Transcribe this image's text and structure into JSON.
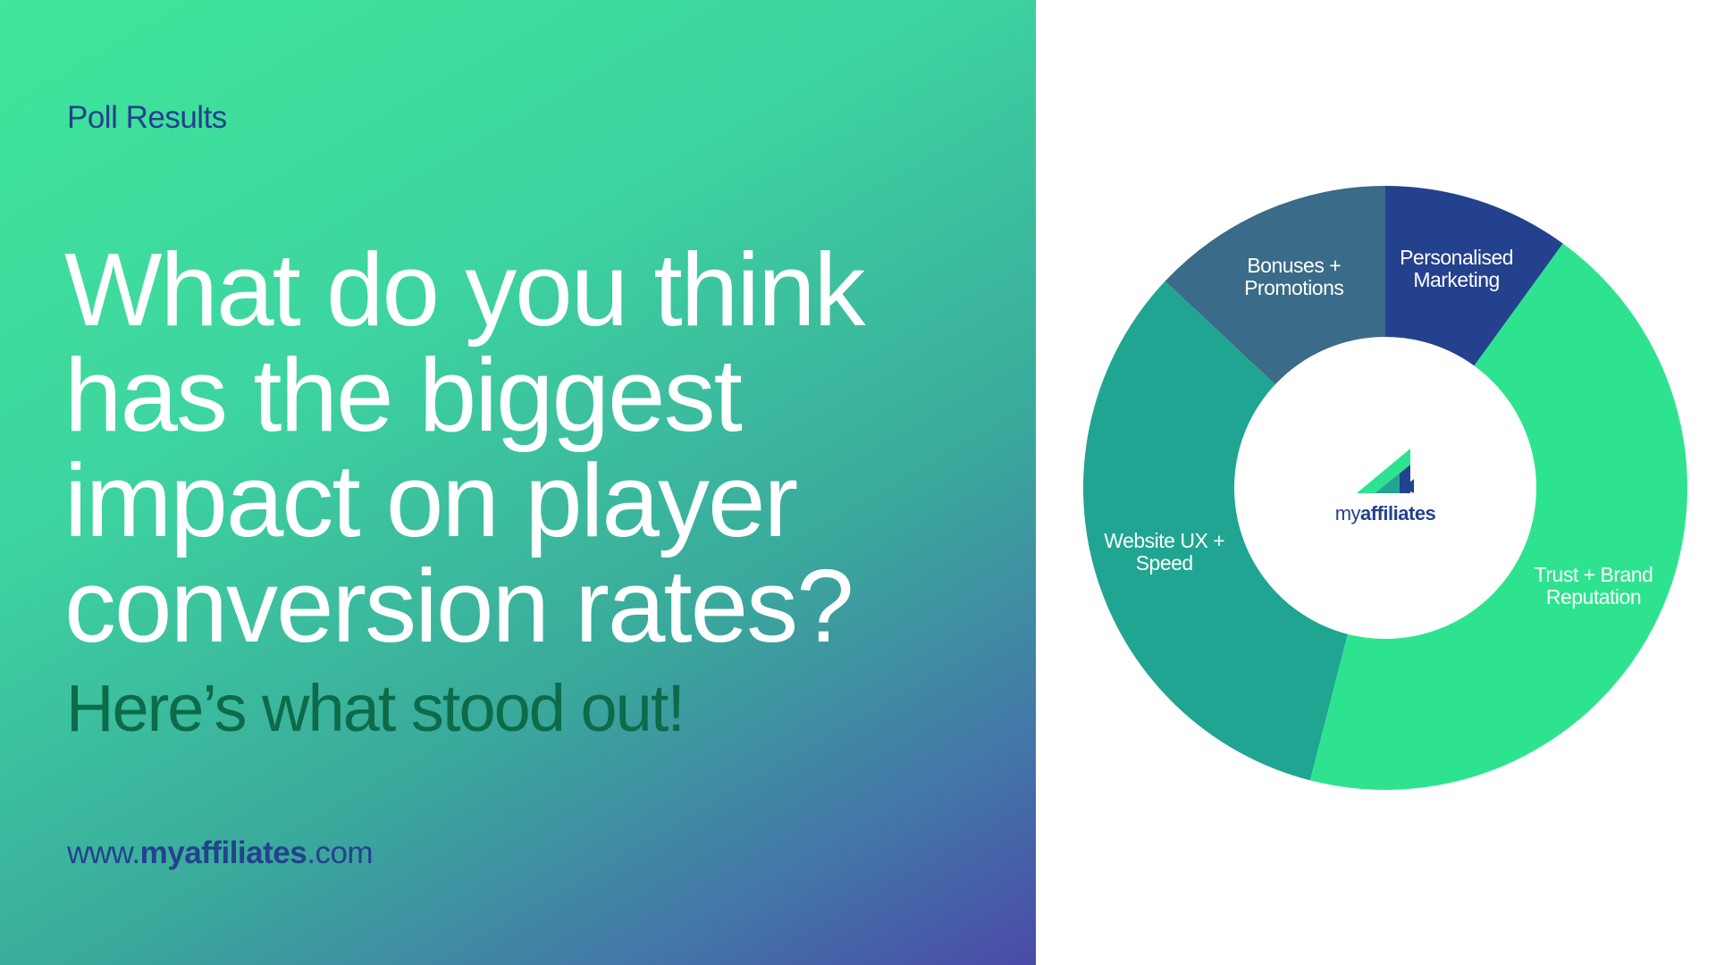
{
  "page": {
    "kicker": "Poll Results",
    "headline": [
      "What do you think",
      "has the biggest",
      "impact on player",
      "conversion rates?"
    ],
    "subheading": "Here’s what stood out!",
    "url": [
      "www.",
      "myaffiliates",
      ".com"
    ],
    "logo": [
      "my",
      "affiliates"
    ]
  },
  "chart_data": {
    "type": "donut",
    "categories": [
      "Personalised Marketing",
      "Trust + Brand Reputation",
      "Website UX + Speed",
      "Bonuses + Promotions"
    ],
    "values": [
      10,
      44,
      33,
      13
    ],
    "colors": [
      "#24418e",
      "#2ee38f",
      "#20a592",
      "#3a6b88"
    ]
  }
}
